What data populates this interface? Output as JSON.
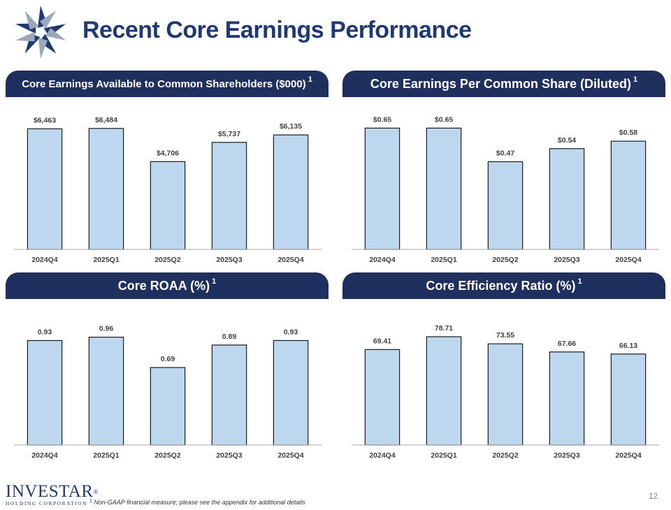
{
  "title": "Recent Core Earnings Performance",
  "brand": {
    "name": "INVESTAR",
    "trademark": "®",
    "subtitle": "HOLDING CORPORATION"
  },
  "footnote": {
    "marker": "1",
    "text": "Non-GAAP financial measure; please see the appendix for additional details"
  },
  "page_number": "12",
  "colors": {
    "header_bg": "#1f2f5e",
    "title": "#1f3a73",
    "bar_fill": "#bdd7ee",
    "bar_stroke": "#1a1a1a",
    "label": "#404040"
  },
  "panels": [
    {
      "header": "Core Earnings Available to Common Shareholders ($000)",
      "header_sup": "1"
    },
    {
      "header": "Core Earnings Per Common Share (Diluted)",
      "header_sup": "1"
    },
    {
      "header": "Core ROAA (%)",
      "header_sup": "1"
    },
    {
      "header": "Core Efficiency Ratio (%)",
      "header_sup": "1"
    }
  ],
  "chart_data": [
    {
      "type": "bar",
      "title": "Core Earnings Available to Common Shareholders ($000)",
      "categories": [
        "2024Q4",
        "2025Q1",
        "2025Q2",
        "2025Q3",
        "2025Q4"
      ],
      "values": [
        6463,
        6484,
        4706,
        5737,
        6135
      ],
      "data_labels": [
        "$6,463",
        "$6,484",
        "$4,706",
        "$5,737",
        "$6,135"
      ],
      "ylim": [
        0,
        7600
      ]
    },
    {
      "type": "bar",
      "title": "Core Earnings Per Common Share (Diluted)",
      "categories": [
        "2024Q4",
        "2025Q1",
        "2025Q2",
        "2025Q3",
        "2025Q4"
      ],
      "values": [
        0.65,
        0.65,
        0.47,
        0.54,
        0.58
      ],
      "data_labels": [
        "$0.65",
        "$0.65",
        "$0.47",
        "$0.54",
        "$0.58"
      ],
      "ylim": [
        0,
        0.76
      ]
    },
    {
      "type": "bar",
      "title": "Core ROAA (%)",
      "categories": [
        "2024Q4",
        "2025Q1",
        "2025Q2",
        "2025Q3",
        "2025Q4"
      ],
      "values": [
        0.93,
        0.96,
        0.69,
        0.89,
        0.93
      ],
      "data_labels": [
        "0.93",
        "0.96",
        "0.69",
        "0.89",
        "0.93"
      ],
      "ylim": [
        0,
        1.2
      ]
    },
    {
      "type": "bar",
      "title": "Core Efficiency Ratio (%)",
      "categories": [
        "2024Q4",
        "2025Q1",
        "2025Q2",
        "2025Q3",
        "2025Q4"
      ],
      "values": [
        69.41,
        78.71,
        73.55,
        67.66,
        66.13
      ],
      "data_labels": [
        "69.41",
        "78.71",
        "73.55",
        "67.66",
        "66.13"
      ],
      "ylim": [
        0,
        98
      ]
    }
  ]
}
